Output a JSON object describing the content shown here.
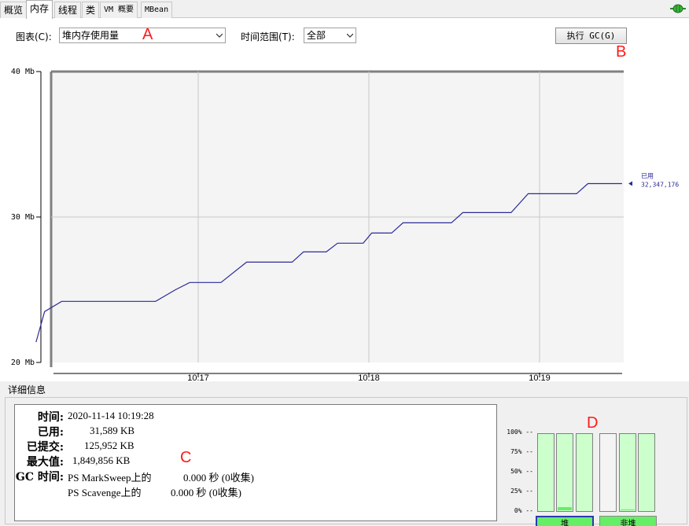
{
  "tabs": [
    "概览",
    "内存",
    "线程",
    "类",
    "VM 概要",
    "MBean"
  ],
  "toolbar": {
    "chart_label": "图表(C):",
    "chart_value": "堆内存使用量",
    "range_label": "时间范围(T):",
    "range_value": "全部",
    "gc_button": "执行 GC(G)"
  },
  "annotations": [
    "A",
    "B",
    "C",
    "D"
  ],
  "chart_data": {
    "type": "line",
    "y_ticks": [
      "40 Mb",
      "30 Mb",
      "20 Mb"
    ],
    "ylim": [
      20,
      40
    ],
    "x_ticks": [
      "10:17",
      "10:18",
      "10:19"
    ],
    "series": [
      {
        "name": "已用",
        "color": "#2b2b9a",
        "current_value": "32,347,176",
        "points": [
          [
            "10:16:03",
            21.4
          ],
          [
            "10:16:06",
            23.5
          ],
          [
            "10:16:12",
            24.2
          ],
          [
            "10:16:25",
            24.2
          ],
          [
            "10:16:28",
            24.2
          ],
          [
            "10:16:45",
            24.2
          ],
          [
            "10:16:52",
            25.0
          ],
          [
            "10:16:57",
            25.5
          ],
          [
            "10:17:00",
            25.5
          ],
          [
            "10:17:08",
            25.5
          ],
          [
            "10:17:17",
            26.9
          ],
          [
            "10:17:25",
            26.9
          ],
          [
            "10:17:33",
            26.9
          ],
          [
            "10:17:37",
            27.6
          ],
          [
            "10:17:45",
            27.6
          ],
          [
            "10:17:49",
            28.2
          ],
          [
            "10:17:58",
            28.2
          ],
          [
            "10:18:01",
            28.9
          ],
          [
            "10:18:08",
            28.9
          ],
          [
            "10:18:12",
            29.6
          ],
          [
            "10:18:20",
            29.6
          ],
          [
            "10:18:29",
            29.6
          ],
          [
            "10:18:33",
            30.3
          ],
          [
            "10:18:42",
            30.3
          ],
          [
            "10:18:50",
            30.3
          ],
          [
            "10:18:56",
            31.6
          ],
          [
            "10:19:00",
            31.6
          ],
          [
            "10:19:05",
            31.6
          ],
          [
            "10:19:13",
            31.6
          ],
          [
            "10:19:17",
            32.3
          ],
          [
            "10:19:29",
            32.3
          ]
        ]
      }
    ],
    "grid": true
  },
  "details": {
    "title": "详细信息",
    "rows": [
      {
        "key": "时间:",
        "value": "2020-11-14 10:19:28"
      },
      {
        "key": "已用:",
        "value": "31,589 KB"
      },
      {
        "key": "已提交:",
        "value": "125,952 KB"
      },
      {
        "key": "最大值:",
        "value": "1,849,856 KB"
      },
      {
        "key": "GC 时间:",
        "value": "PS MarkSweep上的",
        "extra": "0.000 秒 (0收集)"
      }
    ],
    "gc_row2": {
      "value": "PS Scavenge上的",
      "extra": "0.000 秒 (0收集)"
    }
  },
  "pools": {
    "pct_labels": [
      "100% --",
      "75% --",
      "50% --",
      "25% --",
      "0% --"
    ],
    "heap_label": "堆",
    "nonheap_label": "非堆",
    "heap_bars": [
      0.0,
      0.04,
      0.0
    ],
    "nonheap_bars": [
      0.0,
      0.01,
      0.0
    ],
    "heap_color": "#66ee66",
    "nonheap_color": "#ccffcc"
  }
}
